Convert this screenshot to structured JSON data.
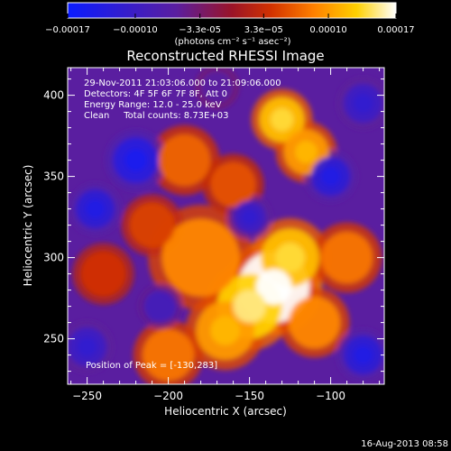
{
  "chart_data": {
    "type": "heatmap",
    "title": "Reconstructed RHESSI Image",
    "xlabel": "Heliocentric X (arcsec)",
    "ylabel": "Heliocentric Y (arcsec)",
    "xlim": [
      -262,
      -67
    ],
    "ylim": [
      222,
      417
    ],
    "xticks": [
      -250,
      -200,
      -150,
      -100
    ],
    "yticks": [
      250,
      300,
      350,
      400
    ],
    "colorbar": {
      "min": -0.00017,
      "max": 0.00017,
      "tick_values": [
        -0.00017,
        -0.0001,
        -3.3e-05,
        3.3e-05,
        0.0001,
        0.00017
      ],
      "tick_labels": [
        "-0.00017",
        "-0.00010",
        "-3.3e-05",
        "3.3e-05",
        "0.00010",
        "0.00017"
      ],
      "unit_line": "(photons cm⁻² s⁻¹ asec⁻²)",
      "colors": [
        "#0a1cff",
        "#5a1ea0",
        "#9a1428",
        "#d23200",
        "#ff8000",
        "#ffd000",
        "#ffffff"
      ]
    },
    "annotations": [
      "29-Nov-2011 21:03:06.000 to 21:09:06.000",
      "Detectors: 4F 5F 6F 7F 8F, Att 0",
      "Energy Range: 12.0 - 25.0 keV",
      "Clean     Total counts: 8.73E+03"
    ],
    "peak_label": "Position of Peak = [-130,283]",
    "peak": [
      -130,
      283
    ],
    "blobs": [
      {
        "x": -135,
        "y": 282,
        "r": 22,
        "v": 0.00017
      },
      {
        "x": -150,
        "y": 270,
        "r": 20,
        "v": 0.00013
      },
      {
        "x": -125,
        "y": 300,
        "r": 18,
        "v": 0.00012
      },
      {
        "x": -180,
        "y": 300,
        "r": 24,
        "v": 9e-05
      },
      {
        "x": -165,
        "y": 255,
        "r": 18,
        "v": 0.0001
      },
      {
        "x": -200,
        "y": 240,
        "r": 16,
        "v": 8e-05
      },
      {
        "x": -110,
        "y": 260,
        "r": 16,
        "v": 9e-05
      },
      {
        "x": -130,
        "y": 385,
        "r": 14,
        "v": 0.00012
      },
      {
        "x": -115,
        "y": 365,
        "r": 14,
        "v": 0.0001
      },
      {
        "x": -190,
        "y": 360,
        "r": 16,
        "v": 7e-05
      },
      {
        "x": -90,
        "y": 300,
        "r": 16,
        "v": 8e-05
      },
      {
        "x": -210,
        "y": 320,
        "r": 14,
        "v": 5e-05
      },
      {
        "x": -160,
        "y": 345,
        "r": 14,
        "v": 6e-05
      },
      {
        "x": -240,
        "y": 290,
        "r": 14,
        "v": 4e-05
      },
      {
        "x": -220,
        "y": 360,
        "r": 14,
        "v": -0.00013
      },
      {
        "x": -100,
        "y": 350,
        "r": 12,
        "v": -0.00012
      },
      {
        "x": -80,
        "y": 240,
        "r": 12,
        "v": -0.00012
      },
      {
        "x": -245,
        "y": 330,
        "r": 12,
        "v": -0.00012
      },
      {
        "x": -250,
        "y": 245,
        "r": 12,
        "v": -0.0001
      },
      {
        "x": -150,
        "y": 325,
        "r": 10,
        "v": -0.0001
      },
      {
        "x": -205,
        "y": 270,
        "r": 10,
        "v": -9e-05
      },
      {
        "x": -80,
        "y": 395,
        "r": 12,
        "v": -0.0001
      },
      {
        "x": -170,
        "y": 405,
        "r": 10,
        "v": -6e-05
      }
    ]
  },
  "footer": {
    "timestamp": "16-Aug-2013 08:58"
  }
}
